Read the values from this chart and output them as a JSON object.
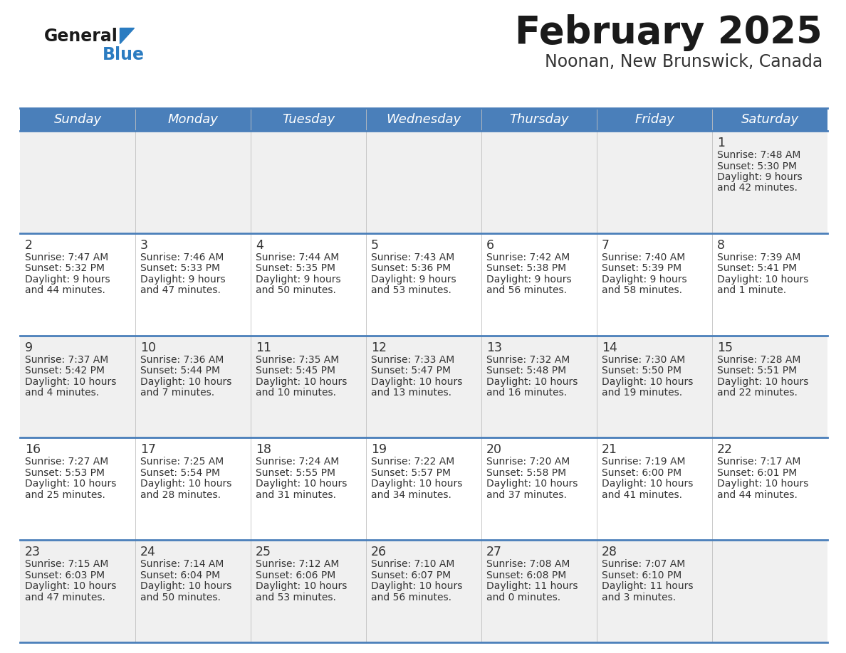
{
  "title": "February 2025",
  "subtitle": "Noonan, New Brunswick, Canada",
  "days_of_week": [
    "Sunday",
    "Monday",
    "Tuesday",
    "Wednesday",
    "Thursday",
    "Friday",
    "Saturday"
  ],
  "header_bg": "#4a7fba",
  "header_text": "#ffffff",
  "cell_bg_gray": "#f0f0f0",
  "cell_bg_white": "#ffffff",
  "divider_color": "#4a7fba",
  "text_color": "#333333",
  "title_color": "#1a1a1a",
  "subtitle_color": "#333333",
  "logo_general_color": "#1a1a1a",
  "logo_blue_color": "#2b7cc1",
  "calendar_data": [
    [
      null,
      null,
      null,
      null,
      null,
      null,
      {
        "day": "1",
        "sunrise": "7:48 AM",
        "sunset": "5:30 PM",
        "daylight_line1": "Daylight: 9 hours",
        "daylight_line2": "and 42 minutes."
      }
    ],
    [
      {
        "day": "2",
        "sunrise": "7:47 AM",
        "sunset": "5:32 PM",
        "daylight_line1": "Daylight: 9 hours",
        "daylight_line2": "and 44 minutes."
      },
      {
        "day": "3",
        "sunrise": "7:46 AM",
        "sunset": "5:33 PM",
        "daylight_line1": "Daylight: 9 hours",
        "daylight_line2": "and 47 minutes."
      },
      {
        "day": "4",
        "sunrise": "7:44 AM",
        "sunset": "5:35 PM",
        "daylight_line1": "Daylight: 9 hours",
        "daylight_line2": "and 50 minutes."
      },
      {
        "day": "5",
        "sunrise": "7:43 AM",
        "sunset": "5:36 PM",
        "daylight_line1": "Daylight: 9 hours",
        "daylight_line2": "and 53 minutes."
      },
      {
        "day": "6",
        "sunrise": "7:42 AM",
        "sunset": "5:38 PM",
        "daylight_line1": "Daylight: 9 hours",
        "daylight_line2": "and 56 minutes."
      },
      {
        "day": "7",
        "sunrise": "7:40 AM",
        "sunset": "5:39 PM",
        "daylight_line1": "Daylight: 9 hours",
        "daylight_line2": "and 58 minutes."
      },
      {
        "day": "8",
        "sunrise": "7:39 AM",
        "sunset": "5:41 PM",
        "daylight_line1": "Daylight: 10 hours",
        "daylight_line2": "and 1 minute."
      }
    ],
    [
      {
        "day": "9",
        "sunrise": "7:37 AM",
        "sunset": "5:42 PM",
        "daylight_line1": "Daylight: 10 hours",
        "daylight_line2": "and 4 minutes."
      },
      {
        "day": "10",
        "sunrise": "7:36 AM",
        "sunset": "5:44 PM",
        "daylight_line1": "Daylight: 10 hours",
        "daylight_line2": "and 7 minutes."
      },
      {
        "day": "11",
        "sunrise": "7:35 AM",
        "sunset": "5:45 PM",
        "daylight_line1": "Daylight: 10 hours",
        "daylight_line2": "and 10 minutes."
      },
      {
        "day": "12",
        "sunrise": "7:33 AM",
        "sunset": "5:47 PM",
        "daylight_line1": "Daylight: 10 hours",
        "daylight_line2": "and 13 minutes."
      },
      {
        "day": "13",
        "sunrise": "7:32 AM",
        "sunset": "5:48 PM",
        "daylight_line1": "Daylight: 10 hours",
        "daylight_line2": "and 16 minutes."
      },
      {
        "day": "14",
        "sunrise": "7:30 AM",
        "sunset": "5:50 PM",
        "daylight_line1": "Daylight: 10 hours",
        "daylight_line2": "and 19 minutes."
      },
      {
        "day": "15",
        "sunrise": "7:28 AM",
        "sunset": "5:51 PM",
        "daylight_line1": "Daylight: 10 hours",
        "daylight_line2": "and 22 minutes."
      }
    ],
    [
      {
        "day": "16",
        "sunrise": "7:27 AM",
        "sunset": "5:53 PM",
        "daylight_line1": "Daylight: 10 hours",
        "daylight_line2": "and 25 minutes."
      },
      {
        "day": "17",
        "sunrise": "7:25 AM",
        "sunset": "5:54 PM",
        "daylight_line1": "Daylight: 10 hours",
        "daylight_line2": "and 28 minutes."
      },
      {
        "day": "18",
        "sunrise": "7:24 AM",
        "sunset": "5:55 PM",
        "daylight_line1": "Daylight: 10 hours",
        "daylight_line2": "and 31 minutes."
      },
      {
        "day": "19",
        "sunrise": "7:22 AM",
        "sunset": "5:57 PM",
        "daylight_line1": "Daylight: 10 hours",
        "daylight_line2": "and 34 minutes."
      },
      {
        "day": "20",
        "sunrise": "7:20 AM",
        "sunset": "5:58 PM",
        "daylight_line1": "Daylight: 10 hours",
        "daylight_line2": "and 37 minutes."
      },
      {
        "day": "21",
        "sunrise": "7:19 AM",
        "sunset": "6:00 PM",
        "daylight_line1": "Daylight: 10 hours",
        "daylight_line2": "and 41 minutes."
      },
      {
        "day": "22",
        "sunrise": "7:17 AM",
        "sunset": "6:01 PM",
        "daylight_line1": "Daylight: 10 hours",
        "daylight_line2": "and 44 minutes."
      }
    ],
    [
      {
        "day": "23",
        "sunrise": "7:15 AM",
        "sunset": "6:03 PM",
        "daylight_line1": "Daylight: 10 hours",
        "daylight_line2": "and 47 minutes."
      },
      {
        "day": "24",
        "sunrise": "7:14 AM",
        "sunset": "6:04 PM",
        "daylight_line1": "Daylight: 10 hours",
        "daylight_line2": "and 50 minutes."
      },
      {
        "day": "25",
        "sunrise": "7:12 AM",
        "sunset": "6:06 PM",
        "daylight_line1": "Daylight: 10 hours",
        "daylight_line2": "and 53 minutes."
      },
      {
        "day": "26",
        "sunrise": "7:10 AM",
        "sunset": "6:07 PM",
        "daylight_line1": "Daylight: 10 hours",
        "daylight_line2": "and 56 minutes."
      },
      {
        "day": "27",
        "sunrise": "7:08 AM",
        "sunset": "6:08 PM",
        "daylight_line1": "Daylight: 11 hours",
        "daylight_line2": "and 0 minutes."
      },
      {
        "day": "28",
        "sunrise": "7:07 AM",
        "sunset": "6:10 PM",
        "daylight_line1": "Daylight: 11 hours",
        "daylight_line2": "and 3 minutes."
      },
      null
    ]
  ]
}
